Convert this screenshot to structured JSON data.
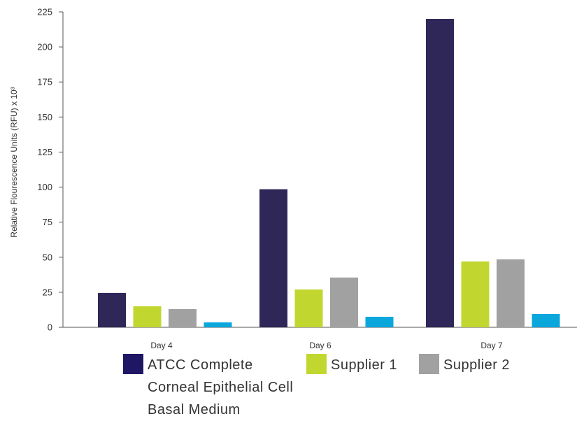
{
  "chart_data": {
    "type": "bar",
    "ylabel": "Relative Flourescence  Units (RFU) x 10³",
    "ylim": [
      0,
      225
    ],
    "yticks": [
      0,
      25,
      50,
      75,
      100,
      125,
      150,
      175,
      200,
      225
    ],
    "categories": [
      "Day 4",
      "Day 6",
      "Day 7"
    ],
    "grid": false,
    "legend_position": "bottom",
    "series": [
      {
        "name": "ATCC Complete Corneal Epithelial Cell Basal Medium",
        "color": "#2e2758",
        "values": [
          24.5,
          98.5,
          220
        ]
      },
      {
        "name": "Supplier 1",
        "color": "#c1d72f",
        "values": [
          15,
          27,
          47
        ]
      },
      {
        "name": "Supplier 2",
        "color": "#a1a1a1",
        "values": [
          13,
          35.5,
          48.5
        ]
      },
      {
        "color": "#0aa7dd",
        "values": [
          3.5,
          7.5,
          9.5
        ]
      }
    ]
  },
  "legend": {
    "items": [
      {
        "label": "ATCC Complete Corneal Epithelial Cell Basal Medium",
        "color": "#1f1763"
      },
      {
        "label": "Supplier 1",
        "color": "#c1d72f"
      },
      {
        "label": "Supplier 2",
        "color": "#a1a1a1"
      }
    ]
  }
}
